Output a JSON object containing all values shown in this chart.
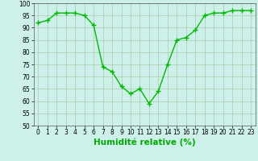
{
  "x": [
    0,
    1,
    2,
    3,
    4,
    5,
    6,
    7,
    8,
    9,
    10,
    11,
    12,
    13,
    14,
    15,
    16,
    17,
    18,
    19,
    20,
    21,
    22,
    23
  ],
  "y": [
    92,
    93,
    96,
    96,
    96,
    95,
    91,
    74,
    72,
    66,
    63,
    65,
    59,
    64,
    75,
    85,
    86,
    89,
    95,
    96,
    96,
    97,
    97,
    97
  ],
  "line_color": "#00bb00",
  "marker": "+",
  "marker_size": 4,
  "bg_color": "#cef0ea",
  "grid_color": "#aaccaa",
  "xlabel": "Humidité relative (%)",
  "xlabel_color": "#00aa00",
  "ylim": [
    50,
    100
  ],
  "yticks": [
    50,
    55,
    60,
    65,
    70,
    75,
    80,
    85,
    90,
    95,
    100
  ],
  "xticks": [
    0,
    1,
    2,
    3,
    4,
    5,
    6,
    7,
    8,
    9,
    10,
    11,
    12,
    13,
    14,
    15,
    16,
    17,
    18,
    19,
    20,
    21,
    22,
    23
  ],
  "tick_fontsize": 5.5,
  "xlabel_fontsize": 7.5,
  "linewidth": 1.0,
  "markeredgewidth": 1.0
}
